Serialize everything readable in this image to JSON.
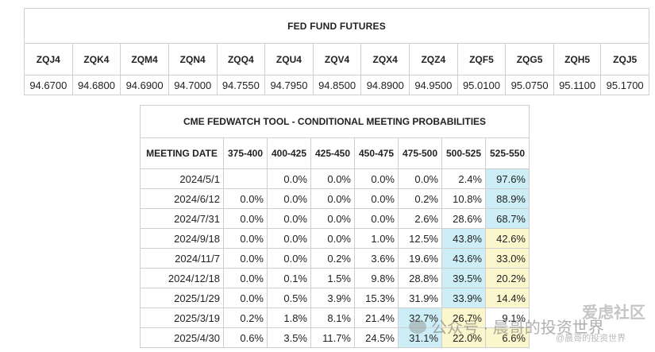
{
  "futures": {
    "title": "FED FUND FUTURES",
    "contracts": [
      "ZQJ4",
      "ZQK4",
      "ZQM4",
      "ZQN4",
      "ZQQ4",
      "ZQU4",
      "ZQV4",
      "ZQX4",
      "ZQZ4",
      "ZQF5",
      "ZQG5",
      "ZQH5",
      "ZQJ5"
    ],
    "prices": [
      "94.6700",
      "94.6800",
      "94.6900",
      "94.7000",
      "94.7550",
      "94.7950",
      "94.8500",
      "94.8900",
      "94.9500",
      "95.0100",
      "95.0750",
      "95.1100",
      "95.1700"
    ]
  },
  "fedwatch": {
    "title": "CME FEDWATCH TOOL - CONDITIONAL MEETING PROBABILITIES",
    "headers": [
      "MEETING DATE",
      "375-400",
      "400-425",
      "425-450",
      "450-475",
      "475-500",
      "500-525",
      "525-550"
    ],
    "rows": [
      {
        "date": "2024/5/1",
        "values": [
          "",
          "0.0%",
          "0.0%",
          "0.0%",
          "0.0%",
          "2.4%",
          "97.6%"
        ],
        "highlight": [
          "",
          "",
          "",
          "",
          "",
          "",
          "blue"
        ]
      },
      {
        "date": "2024/6/12",
        "values": [
          "0.0%",
          "0.0%",
          "0.0%",
          "0.0%",
          "0.2%",
          "10.8%",
          "88.9%"
        ],
        "highlight": [
          "",
          "",
          "",
          "",
          "",
          "",
          "blue"
        ]
      },
      {
        "date": "2024/7/31",
        "values": [
          "0.0%",
          "0.0%",
          "0.0%",
          "0.0%",
          "2.6%",
          "28.6%",
          "68.7%"
        ],
        "highlight": [
          "",
          "",
          "",
          "",
          "",
          "",
          "blue"
        ]
      },
      {
        "date": "2024/9/18",
        "values": [
          "0.0%",
          "0.0%",
          "0.0%",
          "1.0%",
          "12.5%",
          "43.8%",
          "42.6%"
        ],
        "highlight": [
          "",
          "",
          "",
          "",
          "",
          "blue",
          "yellow"
        ]
      },
      {
        "date": "2024/11/7",
        "values": [
          "0.0%",
          "0.0%",
          "0.2%",
          "3.6%",
          "19.6%",
          "43.6%",
          "33.0%"
        ],
        "highlight": [
          "",
          "",
          "",
          "",
          "",
          "blue",
          "yellow"
        ]
      },
      {
        "date": "2024/12/18",
        "values": [
          "0.0%",
          "0.1%",
          "1.5%",
          "9.8%",
          "28.8%",
          "39.5%",
          "20.2%"
        ],
        "highlight": [
          "",
          "",
          "",
          "",
          "",
          "blue",
          "yellow"
        ]
      },
      {
        "date": "2025/1/29",
        "values": [
          "0.0%",
          "0.5%",
          "3.9%",
          "15.3%",
          "31.9%",
          "33.9%",
          "14.4%"
        ],
        "highlight": [
          "",
          "",
          "",
          "",
          "",
          "blue",
          "yellow"
        ]
      },
      {
        "date": "2025/3/19",
        "values": [
          "0.2%",
          "1.8%",
          "8.1%",
          "21.4%",
          "32.7%",
          "26.7%",
          "9.1%"
        ],
        "highlight": [
          "",
          "",
          "",
          "",
          "blue",
          "yellow",
          ""
        ]
      },
      {
        "date": "2025/4/30",
        "values": [
          "0.6%",
          "3.5%",
          "11.7%",
          "24.5%",
          "31.1%",
          "22.0%",
          "6.6%"
        ],
        "highlight": [
          "",
          "",
          "",
          "",
          "blue",
          "yellow",
          "yellow"
        ]
      }
    ]
  },
  "watermark": {
    "community": "爱虑社区",
    "account": "公众号 · 晨哥的投资世界",
    "handle": "@晨哥的投资世界"
  }
}
